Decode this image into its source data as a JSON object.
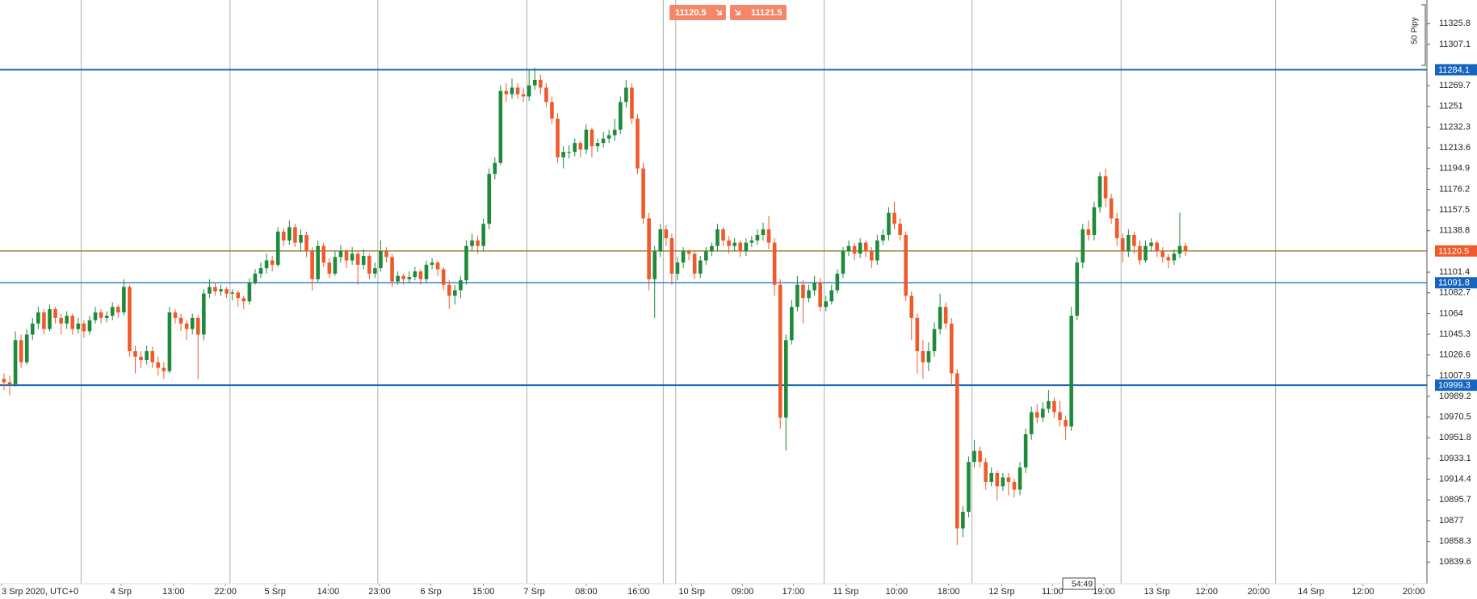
{
  "chart_data": {
    "type": "candlestick",
    "sell_price": 11120.5,
    "buy_price": 11121.5,
    "pip_scale_label": "50 Pipy",
    "countdown": "54:49",
    "up_color": "#1e8a3c",
    "down_color": "#f05a2a",
    "ylim": [
      10820.1,
      11347.1
    ],
    "yticks": [
      11325.8,
      11307.1,
      11269.7,
      11251.0,
      11232.3,
      11213.6,
      11194.9,
      11176.2,
      11157.5,
      11138.8,
      11101.4,
      11082.7,
      11064.0,
      11045.3,
      11026.6,
      11007.9,
      10989.2,
      10970.5,
      10951.8,
      10933.1,
      10914.4,
      10895.7,
      10877.0,
      10858.3,
      10839.6
    ],
    "xlim": [
      -0.7,
      249.3
    ],
    "xticks": [
      {
        "value": -0.4,
        "label": "3 Srp 2020, UTC+0"
      },
      {
        "value": 20.5,
        "label": "4 Srp"
      },
      {
        "value": 29.7,
        "label": "13:00"
      },
      {
        "value": 38.8,
        "label": "22:00"
      },
      {
        "value": 47.5,
        "label": "5 Srp"
      },
      {
        "value": 56.8,
        "label": "14:00"
      },
      {
        "value": 65.8,
        "label": "23:00"
      },
      {
        "value": 74.8,
        "label": "6 Srp"
      },
      {
        "value": 84.0,
        "label": "15:00"
      },
      {
        "value": 92.9,
        "label": "7 Srp"
      },
      {
        "value": 102.0,
        "label": "08:00"
      },
      {
        "value": 111.2,
        "label": "16:00"
      },
      {
        "value": 120.5,
        "label": "10 Srp"
      },
      {
        "value": 129.4,
        "label": "09:00"
      },
      {
        "value": 138.3,
        "label": "17:00"
      },
      {
        "value": 147.5,
        "label": "11 Srp"
      },
      {
        "value": 156.4,
        "label": "10:00"
      },
      {
        "value": 165.5,
        "label": "18:00"
      },
      {
        "value": 174.8,
        "label": "12 Srp"
      },
      {
        "value": 183.7,
        "label": "11:00"
      },
      {
        "value": 192.7,
        "label": "19:00"
      },
      {
        "value": 202.0,
        "label": "13 Srp"
      },
      {
        "value": 210.7,
        "label": "12:00"
      },
      {
        "value": 219.8,
        "label": "20:00"
      },
      {
        "value": 229.0,
        "label": "14 Srp"
      },
      {
        "value": 238.1,
        "label": "12:00"
      },
      {
        "value": 247.0,
        "label": "20:00"
      }
    ],
    "xgrid": [
      13.5,
      39.6,
      65.5,
      91.6,
      115.5,
      117.7,
      143.7,
      169.6,
      195.7,
      222.8
    ],
    "levels": [
      {
        "value": 11284.1,
        "color": "#1565c0",
        "style": "thick"
      },
      {
        "value": 11120.5,
        "color": "#f05a2a",
        "line_color": "#8a6d1e",
        "style": "thin"
      },
      {
        "value": 11091.8,
        "color": "#1565c0",
        "style": "thin"
      },
      {
        "value": 10999.3,
        "color": "#1565c0",
        "style": "thick"
      }
    ],
    "candles": [
      [
        11005,
        11010,
        10995,
        11002
      ],
      [
        11002,
        11008,
        10990,
        11000
      ],
      [
        11000,
        11048,
        10998,
        11040
      ],
      [
        11040,
        11045,
        11015,
        11020
      ],
      [
        11020,
        11050,
        11018,
        11045
      ],
      [
        11045,
        11060,
        11040,
        11055
      ],
      [
        11055,
        11070,
        11050,
        11065
      ],
      [
        11065,
        11068,
        11045,
        11050
      ],
      [
        11050,
        11072,
        11048,
        11068
      ],
      [
        11068,
        11070,
        11055,
        11060
      ],
      [
        11060,
        11064,
        11045,
        11055
      ],
      [
        11055,
        11066,
        11050,
        11062
      ],
      [
        11062,
        11064,
        11045,
        11050
      ],
      [
        11050,
        11060,
        11046,
        11055
      ],
      [
        11055,
        11058,
        11042,
        11048
      ],
      [
        11048,
        11062,
        11045,
        11058
      ],
      [
        11058,
        11070,
        11055,
        11065
      ],
      [
        11065,
        11068,
        11055,
        11060
      ],
      [
        11060,
        11066,
        11056,
        11062
      ],
      [
        11062,
        11074,
        11058,
        11070
      ],
      [
        11070,
        11072,
        11060,
        11065
      ],
      [
        11065,
        11095,
        11062,
        11088
      ],
      [
        11088,
        11090,
        11025,
        11030
      ],
      [
        11030,
        11035,
        11010,
        11025
      ],
      [
        11025,
        11030,
        11015,
        11022
      ],
      [
        11022,
        11035,
        11018,
        11030
      ],
      [
        11030,
        11034,
        11015,
        11020
      ],
      [
        11020,
        11025,
        11008,
        11015
      ],
      [
        11015,
        11020,
        11005,
        11012
      ],
      [
        11012,
        11070,
        11010,
        11065
      ],
      [
        11065,
        11068,
        11055,
        11060
      ],
      [
        11060,
        11064,
        11048,
        11055
      ],
      [
        11055,
        11058,
        11040,
        11050
      ],
      [
        11050,
        11064,
        11045,
        11060
      ],
      [
        11060,
        11062,
        11005,
        11045
      ],
      [
        11045,
        11086,
        11040,
        11082
      ],
      [
        11082,
        11095,
        11078,
        11088
      ],
      [
        11088,
        11092,
        11080,
        11084
      ],
      [
        11084,
        11090,
        11080,
        11086
      ],
      [
        11086,
        11088,
        11078,
        11082
      ],
      [
        11082,
        11086,
        11076,
        11083
      ],
      [
        11083,
        11085,
        11070,
        11078
      ],
      [
        11078,
        11080,
        11068,
        11075
      ],
      [
        11075,
        11096,
        11072,
        11092
      ],
      [
        11092,
        11104,
        11090,
        11100
      ],
      [
        11100,
        11110,
        11096,
        11105
      ],
      [
        11105,
        11118,
        11100,
        11112
      ],
      [
        11112,
        11116,
        11102,
        11108
      ],
      [
        11108,
        11142,
        11106,
        11138
      ],
      [
        11138,
        11141,
        11125,
        11130
      ],
      [
        11130,
        11148,
        11126,
        11142
      ],
      [
        11142,
        11145,
        11124,
        11128
      ],
      [
        11128,
        11140,
        11120,
        11135
      ],
      [
        11135,
        11138,
        11115,
        11120
      ],
      [
        11120,
        11124,
        11085,
        11095
      ],
      [
        11095,
        11130,
        11092,
        11125
      ],
      [
        11125,
        11128,
        11106,
        11110
      ],
      [
        11110,
        11114,
        11096,
        11100
      ],
      [
        11100,
        11120,
        11098,
        11115
      ],
      [
        11115,
        11126,
        11110,
        11120
      ],
      [
        11120,
        11122,
        11105,
        11112
      ],
      [
        11112,
        11124,
        11108,
        11118
      ],
      [
        11118,
        11120,
        11090,
        11108
      ],
      [
        11108,
        11122,
        11104,
        11116
      ],
      [
        11116,
        11118,
        11095,
        11100
      ],
      [
        11100,
        11110,
        11096,
        11105
      ],
      [
        11105,
        11130,
        11102,
        11120
      ],
      [
        11120,
        11124,
        11110,
        11115
      ],
      [
        11115,
        11118,
        11088,
        11093
      ],
      [
        11093,
        11102,
        11090,
        11098
      ],
      [
        11098,
        11100,
        11090,
        11095
      ],
      [
        11095,
        11102,
        11092,
        11097
      ],
      [
        11097,
        11106,
        11094,
        11102
      ],
      [
        11102,
        11104,
        11090,
        11095
      ],
      [
        11095,
        11112,
        11092,
        11108
      ],
      [
        11108,
        11114,
        11104,
        11110
      ],
      [
        11110,
        11112,
        11098,
        11104
      ],
      [
        11104,
        11106,
        11085,
        11090
      ],
      [
        11090,
        11094,
        11068,
        11080
      ],
      [
        11080,
        11090,
        11072,
        11085
      ],
      [
        11085,
        11098,
        11078,
        11094
      ],
      [
        11094,
        11130,
        11090,
        11125
      ],
      [
        11125,
        11136,
        11120,
        11130
      ],
      [
        11130,
        11134,
        11118,
        11125
      ],
      [
        11125,
        11150,
        11120,
        11145
      ],
      [
        11145,
        11195,
        11140,
        11190
      ],
      [
        11190,
        11205,
        11185,
        11200
      ],
      [
        11200,
        11270,
        11198,
        11265
      ],
      [
        11265,
        11272,
        11255,
        11262
      ],
      [
        11262,
        11276,
        11258,
        11268
      ],
      [
        11268,
        11272,
        11258,
        11262
      ],
      [
        11262,
        11268,
        11255,
        11260
      ],
      [
        11260,
        11285,
        11256,
        11270
      ],
      [
        11270,
        11286,
        11266,
        11275
      ],
      [
        11275,
        11280,
        11262,
        11268
      ],
      [
        11268,
        11272,
        11250,
        11255
      ],
      [
        11255,
        11260,
        11235,
        11240
      ],
      [
        11240,
        11245,
        11200,
        11205
      ],
      [
        11205,
        11215,
        11195,
        11210
      ],
      [
        11210,
        11216,
        11204,
        11210
      ],
      [
        11210,
        11222,
        11206,
        11218
      ],
      [
        11218,
        11220,
        11205,
        11212
      ],
      [
        11212,
        11235,
        11208,
        11230
      ],
      [
        11230,
        11232,
        11205,
        11215
      ],
      [
        11215,
        11222,
        11210,
        11218
      ],
      [
        11218,
        11228,
        11214,
        11222
      ],
      [
        11222,
        11230,
        11218,
        11225
      ],
      [
        11225,
        11240,
        11220,
        11230
      ],
      [
        11230,
        11260,
        11226,
        11255
      ],
      [
        11255,
        11275,
        11250,
        11268
      ],
      [
        11268,
        11272,
        11235,
        11240
      ],
      [
        11240,
        11244,
        11190,
        11195
      ],
      [
        11195,
        11200,
        11145,
        11150
      ],
      [
        11150,
        11155,
        11085,
        11095
      ],
      [
        11095,
        11125,
        11060,
        11120
      ],
      [
        11120,
        11145,
        11115,
        11140
      ],
      [
        11140,
        11144,
        11125,
        11132
      ],
      [
        11132,
        11136,
        11090,
        11100
      ],
      [
        11100,
        11115,
        11094,
        11110
      ],
      [
        11110,
        11124,
        11105,
        11120
      ],
      [
        11120,
        11122,
        11112,
        11118
      ],
      [
        11118,
        11120,
        11095,
        11100
      ],
      [
        11100,
        11116,
        11096,
        11112
      ],
      [
        11112,
        11124,
        11108,
        11120
      ],
      [
        11120,
        11128,
        11116,
        11125
      ],
      [
        11125,
        11145,
        11120,
        11140
      ],
      [
        11140,
        11142,
        11125,
        11130
      ],
      [
        11130,
        11134,
        11118,
        11125
      ],
      [
        11125,
        11132,
        11120,
        11128
      ],
      [
        11128,
        11130,
        11115,
        11120
      ],
      [
        11120,
        11132,
        11116,
        11128
      ],
      [
        11128,
        11134,
        11124,
        11130
      ],
      [
        11130,
        11140,
        11126,
        11135
      ],
      [
        11135,
        11146,
        11130,
        11140
      ],
      [
        11140,
        11152,
        11122,
        11128
      ],
      [
        11128,
        11132,
        11080,
        11090
      ],
      [
        11090,
        11095,
        10960,
        10970
      ],
      [
        10970,
        11045,
        10940,
        11040
      ],
      [
        11040,
        11076,
        11036,
        11070
      ],
      [
        11070,
        11098,
        11066,
        11090
      ],
      [
        11090,
        11094,
        11055,
        11078
      ],
      [
        11078,
        11090,
        11074,
        11085
      ],
      [
        11085,
        11098,
        11080,
        11092
      ],
      [
        11092,
        11096,
        11066,
        11070
      ],
      [
        11070,
        11080,
        11066,
        11075
      ],
      [
        11075,
        11090,
        11072,
        11085
      ],
      [
        11085,
        11104,
        11082,
        11100
      ],
      [
        11100,
        11124,
        11096,
        11120
      ],
      [
        11120,
        11130,
        11116,
        11125
      ],
      [
        11125,
        11128,
        11112,
        11118
      ],
      [
        11118,
        11132,
        11114,
        11128
      ],
      [
        11128,
        11130,
        11115,
        11120
      ],
      [
        11120,
        11124,
        11105,
        11112
      ],
      [
        11112,
        11135,
        11108,
        11130
      ],
      [
        11130,
        11140,
        11126,
        11135
      ],
      [
        11135,
        11160,
        11130,
        11155
      ],
      [
        11155,
        11165,
        11140,
        11145
      ],
      [
        11145,
        11150,
        11130,
        11135
      ],
      [
        11135,
        11138,
        11075,
        11080
      ],
      [
        11080,
        11084,
        11040,
        11060
      ],
      [
        11060,
        11064,
        11010,
        11030
      ],
      [
        11030,
        11040,
        11005,
        11020
      ],
      [
        11020,
        11038,
        11012,
        11030
      ],
      [
        11030,
        11056,
        11025,
        11050
      ],
      [
        11050,
        11082,
        11045,
        11070
      ],
      [
        11070,
        11074,
        11050,
        11055
      ],
      [
        11055,
        11060,
        11000,
        11010
      ],
      [
        11010,
        11014,
        10855,
        10870
      ],
      [
        10870,
        10890,
        10862,
        10885
      ],
      [
        10885,
        10935,
        10880,
        10930
      ],
      [
        10930,
        10950,
        10925,
        10940
      ],
      [
        10940,
        10944,
        10925,
        10930
      ],
      [
        10930,
        10934,
        10905,
        10912
      ],
      [
        10912,
        10925,
        10908,
        10920
      ],
      [
        10920,
        10922,
        10895,
        10908
      ],
      [
        10908,
        10920,
        10904,
        10916
      ],
      [
        10916,
        10920,
        10900,
        10912
      ],
      [
        10912,
        10915,
        10898,
        10905
      ],
      [
        10905,
        10930,
        10900,
        10925
      ],
      [
        10925,
        10960,
        10920,
        10955
      ],
      [
        10955,
        10980,
        10950,
        10975
      ],
      [
        10975,
        10982,
        10965,
        10970
      ],
      [
        10970,
        10984,
        10966,
        10978
      ],
      [
        10978,
        10995,
        10974,
        10985
      ],
      [
        10985,
        10988,
        10970,
        10975
      ],
      [
        10975,
        10985,
        10962,
        10968
      ],
      [
        10968,
        10972,
        10950,
        10962
      ],
      [
        10962,
        11070,
        10958,
        11062
      ],
      [
        11062,
        11115,
        11058,
        11110
      ],
      [
        11110,
        11145,
        11105,
        11140
      ],
      [
        11140,
        11148,
        11130,
        11135
      ],
      [
        11135,
        11165,
        11130,
        11160
      ],
      [
        11160,
        11192,
        11155,
        11188
      ],
      [
        11188,
        11195,
        11160,
        11168
      ],
      [
        11168,
        11172,
        11145,
        11150
      ],
      [
        11150,
        11155,
        11125,
        11132
      ],
      [
        11132,
        11136,
        11110,
        11120
      ],
      [
        11120,
        11140,
        11115,
        11135
      ],
      [
        11135,
        11138,
        11118,
        11125
      ],
      [
        11125,
        11130,
        11108,
        11112
      ],
      [
        11112,
        11130,
        11110,
        11125
      ],
      [
        11125,
        11132,
        11120,
        11128
      ],
      [
        11128,
        11130,
        11115,
        11120
      ],
      [
        11120,
        11124,
        11110,
        11115
      ],
      [
        11115,
        11118,
        11105,
        11112
      ],
      [
        11112,
        11122,
        11108,
        11118
      ],
      [
        11118,
        11155,
        11114,
        11125
      ],
      [
        11125,
        11128,
        11116,
        11120.5
      ]
    ]
  }
}
